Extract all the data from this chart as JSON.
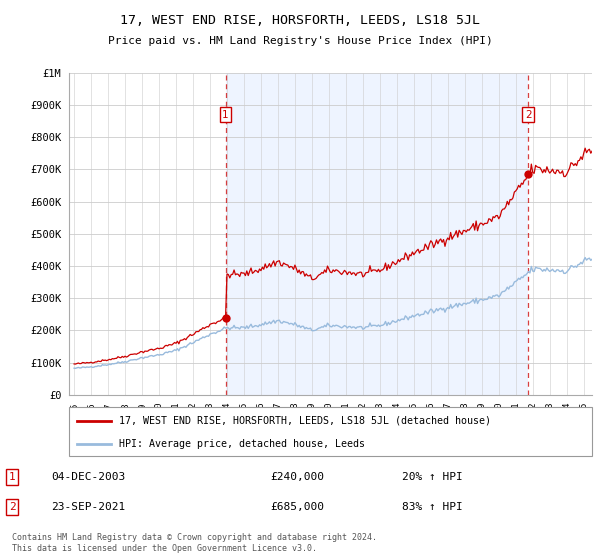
{
  "title": "17, WEST END RISE, HORSFORTH, LEEDS, LS18 5JL",
  "subtitle": "Price paid vs. HM Land Registry's House Price Index (HPI)",
  "legend_label_red": "17, WEST END RISE, HORSFORTH, LEEDS, LS18 5JL (detached house)",
  "legend_label_blue": "HPI: Average price, detached house, Leeds",
  "sale1_date": "04-DEC-2003",
  "sale1_price": 240000,
  "sale1_hpi_pct": "20% ↑ HPI",
  "sale2_date": "23-SEP-2021",
  "sale2_price": 685000,
  "sale2_hpi_pct": "83% ↑ HPI",
  "footnote": "Contains HM Land Registry data © Crown copyright and database right 2024.\nThis data is licensed under the Open Government Licence v3.0.",
  "red_color": "#cc0000",
  "blue_color": "#99bbdd",
  "sale1_x": 2003.917,
  "sale2_x": 2021.727,
  "bg_color": "#ddeeff",
  "chart_bg": "#eef4ff"
}
